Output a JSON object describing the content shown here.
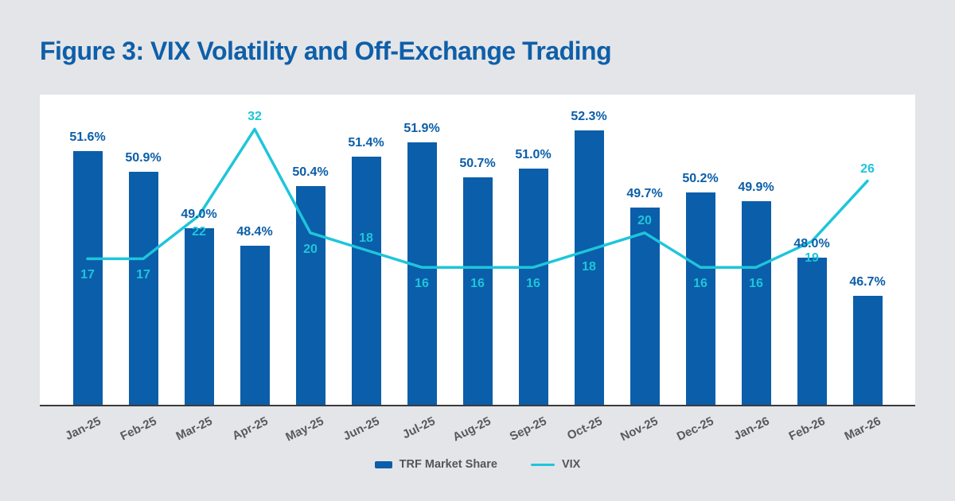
{
  "title": "Figure 3: VIX Volatility and Off-Exchange Trading",
  "legend": {
    "bar_label": "TRF Market Share",
    "line_label": "VIX"
  },
  "colors": {
    "page_bg": "#e4e5e8",
    "panel_bg": "#ffffff",
    "bar": "#0b5ea9",
    "line": "#1ec5db",
    "title": "#0e5fa9",
    "axis": "#3a3a3c",
    "xlabel": "#58595b",
    "legend_text": "#55565a"
  },
  "chart_data": {
    "type": "bar+line",
    "title": "Figure 3: VIX Volatility and Off-Exchange Trading",
    "categories": [
      "Jan-25",
      "Feb-25",
      "Mar-25",
      "Apr-25",
      "May-25",
      "Jun-25",
      "Jul-25",
      "Aug-25",
      "Sep-25",
      "Oct-25",
      "Nov-25",
      "Dec-25",
      "Jan-26",
      "Feb-26",
      "Mar-26"
    ],
    "series": [
      {
        "name": "TRF Market Share",
        "type": "bar",
        "unit": "%",
        "values": [
          51.6,
          50.9,
          49.0,
          48.4,
          50.4,
          51.4,
          51.9,
          50.7,
          51.0,
          52.3,
          49.7,
          50.2,
          49.9,
          48.0,
          46.7
        ],
        "labels": [
          "51.6%",
          "50.9%",
          "49.0%",
          "48.4%",
          "50.4%",
          "51.4%",
          "51.9%",
          "50.7%",
          "51.0%",
          "52.3%",
          "49.7%",
          "50.2%",
          "49.9%",
          "48.0%",
          "46.7%"
        ]
      },
      {
        "name": "VIX",
        "type": "line",
        "values": [
          17,
          17,
          22,
          32,
          20,
          18,
          16,
          16,
          16,
          18,
          20,
          16,
          16,
          19,
          26
        ],
        "labels": [
          "17",
          "17",
          "22",
          "32",
          "20",
          "18",
          "16",
          "16",
          "16",
          "18",
          "20",
          "16",
          "16",
          "19",
          "26"
        ],
        "label_positions": [
          "below",
          "below",
          "below",
          "above",
          "below",
          "above",
          "below",
          "below",
          "below",
          "below",
          "above",
          "below",
          "below",
          "below",
          "above"
        ]
      }
    ],
    "ylim_bars": [
      43,
      53.5
    ],
    "ylim_line": [
      0,
      36
    ],
    "grid": false,
    "y_axis_visible": false,
    "legend_position": "bottom"
  }
}
